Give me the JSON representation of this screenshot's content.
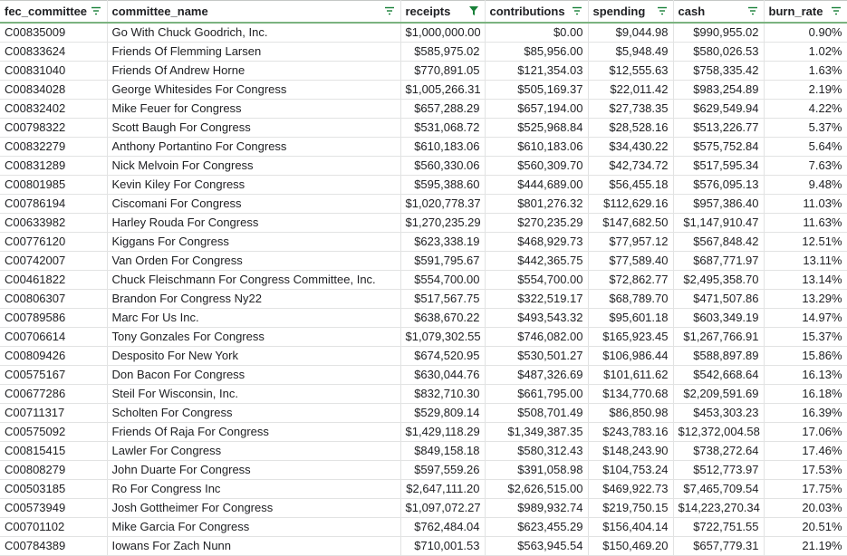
{
  "columns": [
    {
      "key": "fec_committee",
      "label": "fec_committee",
      "align": "left",
      "filter_icon": "filter-lines-icon"
    },
    {
      "key": "committee_name",
      "label": "committee_name",
      "align": "left",
      "filter_icon": "filter-lines-icon"
    },
    {
      "key": "receipts",
      "label": "receipts",
      "align": "right",
      "filter_icon": "filter-funnel-icon"
    },
    {
      "key": "contributions",
      "label": "contributions",
      "align": "right",
      "filter_icon": "filter-lines-icon"
    },
    {
      "key": "spending",
      "label": "spending",
      "align": "right",
      "filter_icon": "filter-lines-icon"
    },
    {
      "key": "cash",
      "label": "cash",
      "align": "right",
      "filter_icon": "filter-lines-icon"
    },
    {
      "key": "burn_rate",
      "label": "burn_rate",
      "align": "right",
      "filter_icon": "filter-lines-icon"
    }
  ],
  "colors": {
    "filter_icon": "#188038",
    "grid": "#e2e3e3",
    "header_underline": "#7bb37f"
  },
  "rows": [
    [
      "C00835009",
      "Go With Chuck Goodrich, Inc.",
      "$1,000,000.00",
      "$0.00",
      "$9,044.98",
      "$990,955.02",
      "0.90%"
    ],
    [
      "C00833624",
      "Friends Of Flemming Larsen",
      "$585,975.02",
      "$85,956.00",
      "$5,948.49",
      "$580,026.53",
      "1.02%"
    ],
    [
      "C00831040",
      "Friends Of Andrew Horne",
      "$770,891.05",
      "$121,354.03",
      "$12,555.63",
      "$758,335.42",
      "1.63%"
    ],
    [
      "C00834028",
      "George Whitesides For Congress",
      "$1,005,266.31",
      "$505,169.37",
      "$22,011.42",
      "$983,254.89",
      "2.19%"
    ],
    [
      "C00832402",
      "Mike Feuer for Congress",
      "$657,288.29",
      "$657,194.00",
      "$27,738.35",
      "$629,549.94",
      "4.22%"
    ],
    [
      "C00798322",
      "Scott Baugh For Congress",
      "$531,068.72",
      "$525,968.84",
      "$28,528.16",
      "$513,226.77",
      "5.37%"
    ],
    [
      "C00832279",
      "Anthony Portantino For Congress",
      "$610,183.06",
      "$610,183.06",
      "$34,430.22",
      "$575,752.84",
      "5.64%"
    ],
    [
      "C00831289",
      "Nick Melvoin For Congress",
      "$560,330.06",
      "$560,309.70",
      "$42,734.72",
      "$517,595.34",
      "7.63%"
    ],
    [
      "C00801985",
      "Kevin Kiley For Congress",
      "$595,388.60",
      "$444,689.00",
      "$56,455.18",
      "$576,095.13",
      "9.48%"
    ],
    [
      "C00786194",
      "Ciscomani For Congress",
      "$1,020,778.37",
      "$801,276.32",
      "$112,629.16",
      "$957,386.40",
      "11.03%"
    ],
    [
      "C00633982",
      "Harley Rouda For Congress",
      "$1,270,235.29",
      "$270,235.29",
      "$147,682.50",
      "$1,147,910.47",
      "11.63%"
    ],
    [
      "C00776120",
      "Kiggans For Congress",
      "$623,338.19",
      "$468,929.73",
      "$77,957.12",
      "$567,848.42",
      "12.51%"
    ],
    [
      "C00742007",
      "Van Orden For Congress",
      "$591,795.67",
      "$442,365.75",
      "$77,589.40",
      "$687,771.97",
      "13.11%"
    ],
    [
      "C00461822",
      "Chuck Fleischmann For Congress Committee, Inc.",
      "$554,700.00",
      "$554,700.00",
      "$72,862.77",
      "$2,495,358.70",
      "13.14%"
    ],
    [
      "C00806307",
      "Brandon For Congress Ny22",
      "$517,567.75",
      "$322,519.17",
      "$68,789.70",
      "$471,507.86",
      "13.29%"
    ],
    [
      "C00789586",
      "Marc For Us Inc.",
      "$638,670.22",
      "$493,543.32",
      "$95,601.18",
      "$603,349.19",
      "14.97%"
    ],
    [
      "C00706614",
      "Tony Gonzales For Congress",
      "$1,079,302.55",
      "$746,082.00",
      "$165,923.45",
      "$1,267,766.91",
      "15.37%"
    ],
    [
      "C00809426",
      "Desposito For New York",
      "$674,520.95",
      "$530,501.27",
      "$106,986.44",
      "$588,897.89",
      "15.86%"
    ],
    [
      "C00575167",
      "Don Bacon For Congress",
      "$630,044.76",
      "$487,326.69",
      "$101,611.62",
      "$542,668.64",
      "16.13%"
    ],
    [
      "C00677286",
      "Steil For Wisconsin, Inc.",
      "$832,710.30",
      "$661,795.00",
      "$134,770.68",
      "$2,209,591.69",
      "16.18%"
    ],
    [
      "C00711317",
      "Scholten For Congress",
      "$529,809.14",
      "$508,701.49",
      "$86,850.98",
      "$453,303.23",
      "16.39%"
    ],
    [
      "C00575092",
      "Friends Of Raja For Congress",
      "$1,429,118.29",
      "$1,349,387.35",
      "$243,783.16",
      "$12,372,004.58",
      "17.06%"
    ],
    [
      "C00815415",
      "Lawler For Congress",
      "$849,158.18",
      "$580,312.43",
      "$148,243.90",
      "$738,272.64",
      "17.46%"
    ],
    [
      "C00808279",
      "John Duarte For Congress",
      "$597,559.26",
      "$391,058.98",
      "$104,753.24",
      "$512,773.97",
      "17.53%"
    ],
    [
      "C00503185",
      "Ro For Congress Inc",
      "$2,647,111.20",
      "$2,626,515.00",
      "$469,922.73",
      "$7,465,709.54",
      "17.75%"
    ],
    [
      "C00573949",
      "Josh Gottheimer For Congress",
      "$1,097,072.27",
      "$989,932.74",
      "$219,750.15",
      "$14,223,270.34",
      "20.03%"
    ],
    [
      "C00701102",
      "Mike Garcia For Congress",
      "$762,484.04",
      "$623,455.29",
      "$156,404.14",
      "$722,751.55",
      "20.51%"
    ],
    [
      "C00784389",
      "Iowans For Zach Nunn",
      "$710,001.53",
      "$563,945.54",
      "$150,469.20",
      "$657,779.31",
      "21.19%"
    ]
  ]
}
